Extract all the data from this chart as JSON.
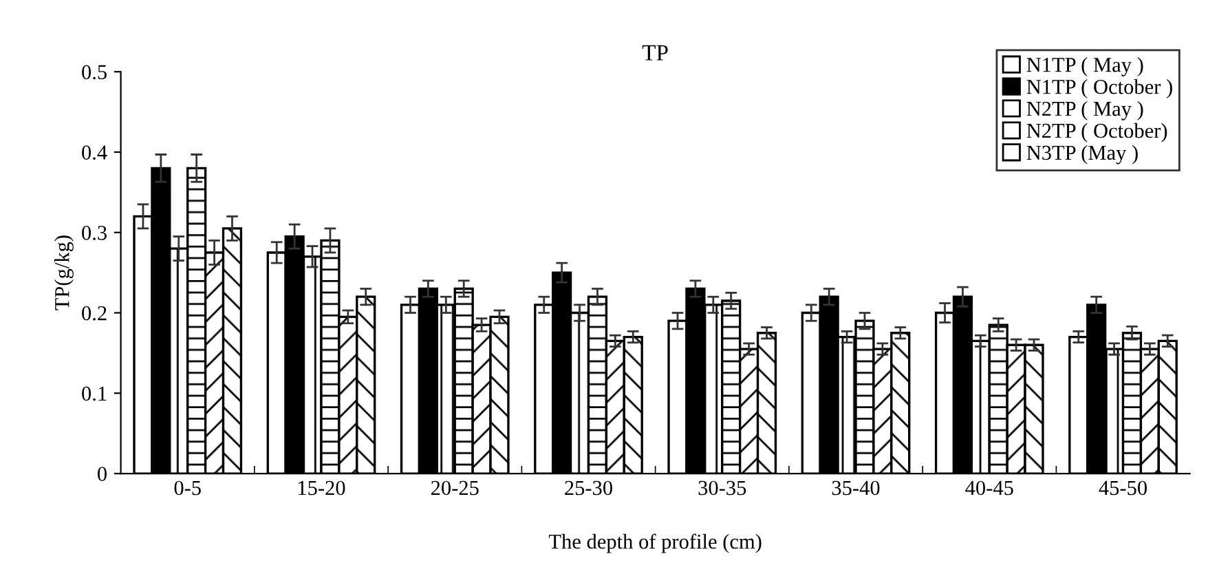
{
  "chart_data": {
    "type": "bar",
    "title": "TP",
    "xlabel": "The depth of profile (cm)",
    "ylabel": "TP(g/kg)",
    "categories": [
      "0-5",
      "15-20",
      "20-25",
      "25-30",
      "30-35",
      "35-40",
      "40-45",
      "45-50"
    ],
    "series": [
      {
        "name": "N1TP ( May )",
        "color": "#ffffff",
        "values": [
          0.32,
          0.275,
          0.21,
          0.21,
          0.19,
          0.2,
          0.2,
          0.17
        ],
        "errors": [
          0.015,
          0.013,
          0.01,
          0.01,
          0.01,
          0.01,
          0.012,
          0.007
        ]
      },
      {
        "name": "N1TP ( October )",
        "color": "#000000",
        "values": [
          0.38,
          0.295,
          0.23,
          0.25,
          0.23,
          0.22,
          0.22,
          0.21
        ],
        "errors": [
          0.017,
          0.015,
          0.01,
          0.012,
          0.01,
          0.01,
          0.012,
          0.01
        ]
      },
      {
        "name": "N2TP ( May )",
        "color": "#ffffff",
        "values": [
          0.28,
          0.27,
          0.21,
          0.2,
          0.21,
          0.17,
          0.165,
          0.155
        ],
        "errors": [
          0.015,
          0.013,
          0.01,
          0.01,
          0.01,
          0.007,
          0.007,
          0.007
        ]
      },
      {
        "name": "N2TP ( October)",
        "color": "#ffffff",
        "values": [
          0.38,
          0.29,
          0.23,
          0.22,
          0.215,
          0.19,
          0.185,
          0.175
        ],
        "errors": [
          0.017,
          0.015,
          0.01,
          0.01,
          0.01,
          0.01,
          0.008,
          0.008
        ]
      },
      {
        "name": "N3TP (May )",
        "color": "#ffffff",
        "values": [
          0.275,
          0.195,
          0.185,
          0.165,
          0.155,
          0.155,
          0.16,
          0.155
        ],
        "errors": [
          0.015,
          0.008,
          0.008,
          0.007,
          0.007,
          0.007,
          0.007,
          0.007
        ]
      },
      {
        "color": "#ffffff",
        "values": [
          0.305,
          0.22,
          0.195,
          0.17,
          0.175,
          0.175,
          0.16,
          0.165
        ],
        "errors": [
          0.015,
          0.01,
          0.008,
          0.007,
          0.007,
          0.007,
          0.007,
          0.007
        ]
      }
    ],
    "ylim": [
      0,
      0.5
    ],
    "yticks": [
      0,
      0.1,
      0.2,
      0.3,
      0.4,
      0.5
    ],
    "grid": false,
    "legend": "top right"
  }
}
